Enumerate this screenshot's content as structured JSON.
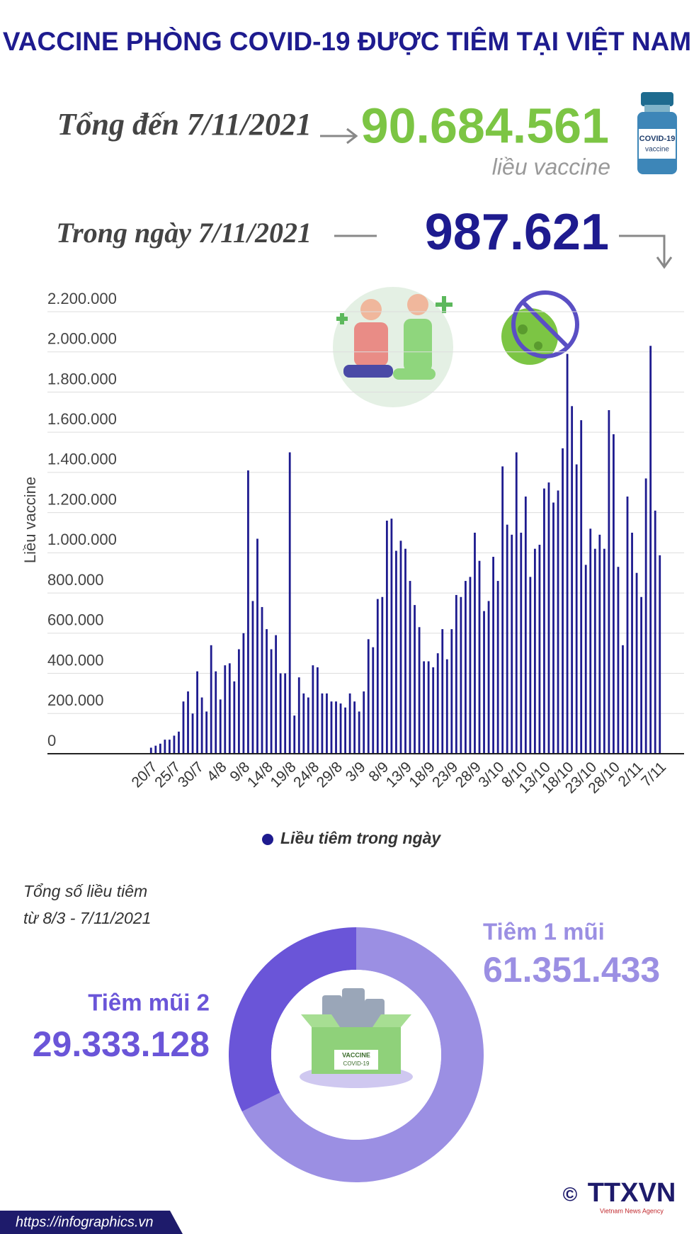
{
  "title": "VACCINE PHÒNG COVID-19 ĐƯỢC TIÊM TẠI VIỆT NAM",
  "total": {
    "label": "Tổng đến 7/11/2021",
    "value": "90.684.561",
    "unit": "liều vaccine"
  },
  "daily": {
    "label": "Trong ngày 7/11/2021",
    "value": "987.621"
  },
  "illustrations": {
    "vial": "COVID-19",
    "vial_sub": "vaccine",
    "box": "VACCINE",
    "box_sub": "COVID-19"
  },
  "chart_data": [
    {
      "type": "bar",
      "y_label": "Liều vaccine",
      "categories": [
        "20/7",
        null,
        null,
        null,
        null,
        "25/7",
        null,
        null,
        null,
        null,
        "30/7",
        null,
        null,
        null,
        null,
        "4/8",
        null,
        null,
        null,
        null,
        "9/8",
        null,
        null,
        null,
        null,
        "14/8",
        null,
        null,
        null,
        null,
        "19/8",
        null,
        null,
        null,
        null,
        "24/8",
        null,
        null,
        null,
        null,
        "29/8",
        null,
        null,
        null,
        null,
        "3/9",
        null,
        null,
        null,
        null,
        "8/9",
        null,
        null,
        null,
        null,
        "13/9",
        null,
        null,
        null,
        null,
        "18/9",
        null,
        null,
        null,
        null,
        "23/9",
        null,
        null,
        null,
        null,
        "28/9",
        null,
        null,
        null,
        null,
        "3/10",
        null,
        null,
        null,
        null,
        "8/10",
        null,
        null,
        null,
        null,
        "13/10",
        null,
        null,
        null,
        null,
        "18/10",
        null,
        null,
        null,
        null,
        "23/10",
        null,
        null,
        null,
        null,
        "28/10",
        null,
        null,
        null,
        null,
        "2/11",
        null,
        null,
        null,
        null,
        "7/11"
      ],
      "series": [
        {
          "name": "Liều tiêm trong ngày",
          "color": "#1e1b8f",
          "values": [
            30000,
            40000,
            50000,
            70000,
            70000,
            90000,
            110000,
            260000,
            310000,
            200000,
            410000,
            280000,
            210000,
            540000,
            410000,
            270000,
            440000,
            450000,
            360000,
            520000,
            600000,
            1410000,
            760000,
            1070000,
            730000,
            620000,
            520000,
            590000,
            400000,
            400000,
            1500000,
            190000,
            380000,
            300000,
            280000,
            440000,
            430000,
            300000,
            300000,
            260000,
            260000,
            250000,
            230000,
            300000,
            260000,
            210000,
            310000,
            570000,
            530000,
            770000,
            780000,
            1160000,
            1170000,
            1010000,
            1060000,
            1020000,
            860000,
            740000,
            630000,
            460000,
            460000,
            430000,
            500000,
            620000,
            470000,
            620000,
            790000,
            780000,
            860000,
            880000,
            1100000,
            960000,
            710000,
            760000,
            980000,
            860000,
            1430000,
            1140000,
            1090000,
            1500000,
            1100000,
            1280000,
            880000,
            1020000,
            1040000,
            1320000,
            1350000,
            1250000,
            1310000,
            1520000,
            1990000,
            1730000,
            1440000,
            1660000,
            940000,
            1120000,
            1020000,
            1090000,
            1020000,
            1710000,
            1590000,
            930000,
            540000,
            1280000,
            1100000,
            900000,
            780000,
            1370000,
            2030000,
            1210000,
            987621
          ]
        }
      ],
      "ylim": [
        0,
        2200000
      ],
      "yticks": [
        0,
        {
          "value": 200000,
          "label": "200.000"
        },
        {
          "value": 400000,
          "label": "400.000"
        },
        {
          "value": 600000,
          "label": "600.000"
        },
        {
          "value": 800000,
          "label": "800.000"
        },
        {
          "value": 1000000,
          "label": "1.000.000"
        },
        {
          "value": 1200000,
          "label": "1.200.000"
        },
        {
          "value": 1400000,
          "label": "1.400.000"
        },
        {
          "value": 1600000,
          "label": "1.600.000"
        },
        {
          "value": 1800000,
          "label": "1.800.000"
        },
        {
          "value": 2000000,
          "label": "2.000.000"
        },
        {
          "value": 2200000,
          "label": "2.200.000"
        }
      ],
      "grid": true,
      "legend": "bottom"
    },
    {
      "type": "pie",
      "title": "Tổng số liều tiêm",
      "subtitle": "từ 8/3 - 7/11/2021",
      "categories": [
        "Tiêm 1 mũi",
        "Tiêm mũi 2"
      ],
      "values": [
        61351433,
        29333128
      ],
      "value_labels": [
        "61.351.433",
        "29.333.128"
      ],
      "colors": [
        "#9b8fe3",
        "#6a55d8"
      ]
    }
  ],
  "footer": {
    "url": "https://infographics.vn",
    "copyright": "©",
    "agency": "TTXVN",
    "agency_sub": "Vietnam News Agency"
  }
}
